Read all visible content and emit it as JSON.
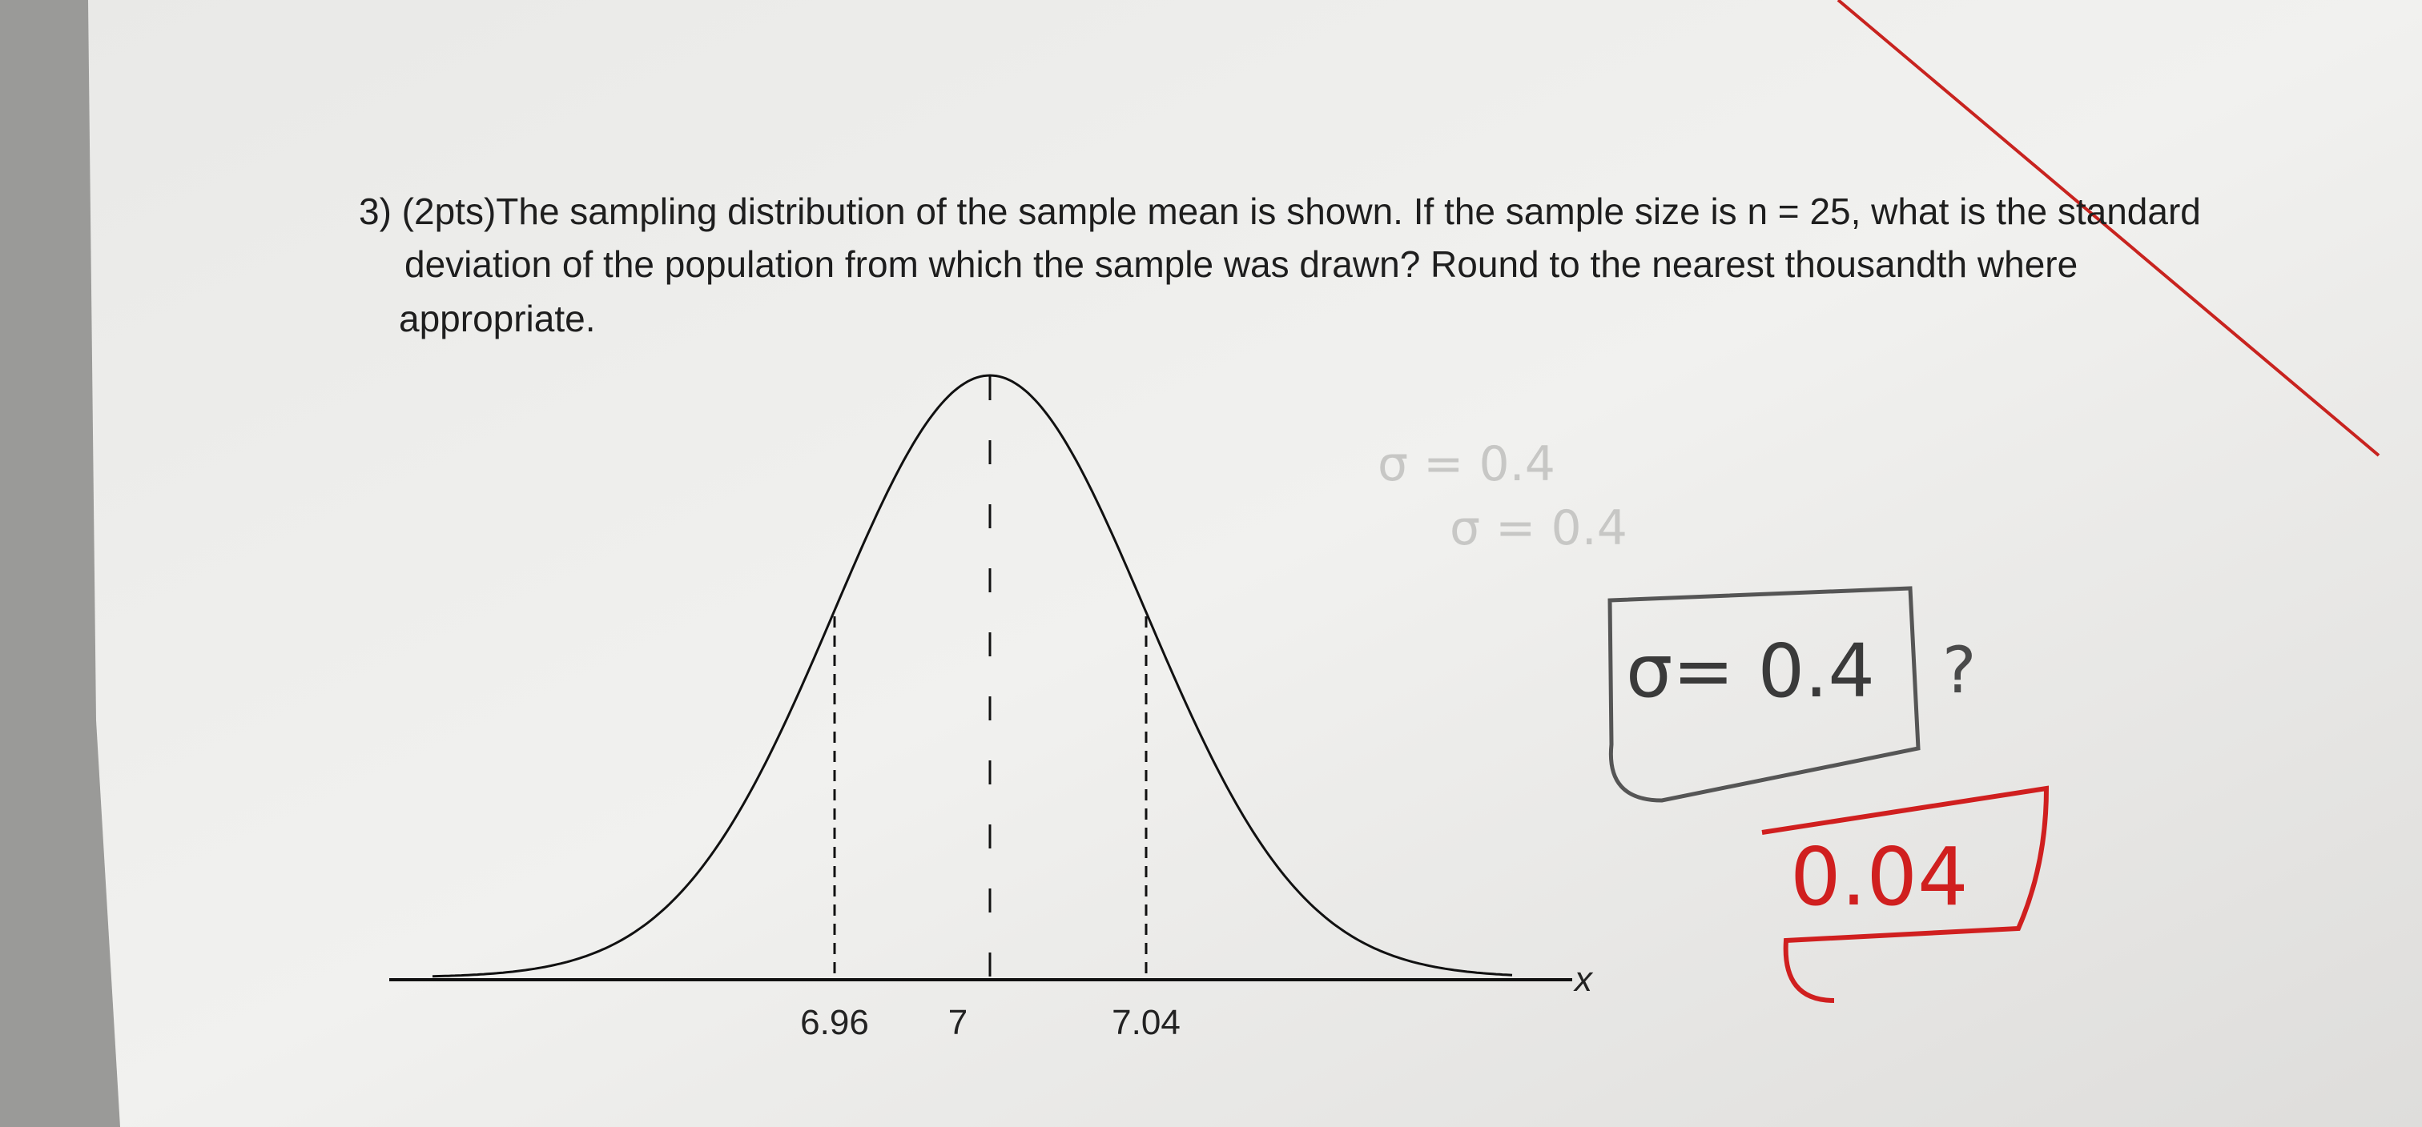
{
  "question": {
    "lines": [
      "3) (2pts)The sampling distribution of the sample mean is shown. If the sample size is n = 25, what is the standard",
      "deviation of the population from which the sample was drawn? Round to the nearest thousandth where",
      "appropriate."
    ]
  },
  "figure": {
    "ticks": [
      "6.96",
      "7",
      "7.04"
    ],
    "axis_label": "x"
  },
  "handwriting": {
    "scratch": [
      "σ = 0.4",
      "σ = 0.4"
    ],
    "answer": "σ= 0.4",
    "question_mark": "?",
    "correction": "0.04"
  }
}
